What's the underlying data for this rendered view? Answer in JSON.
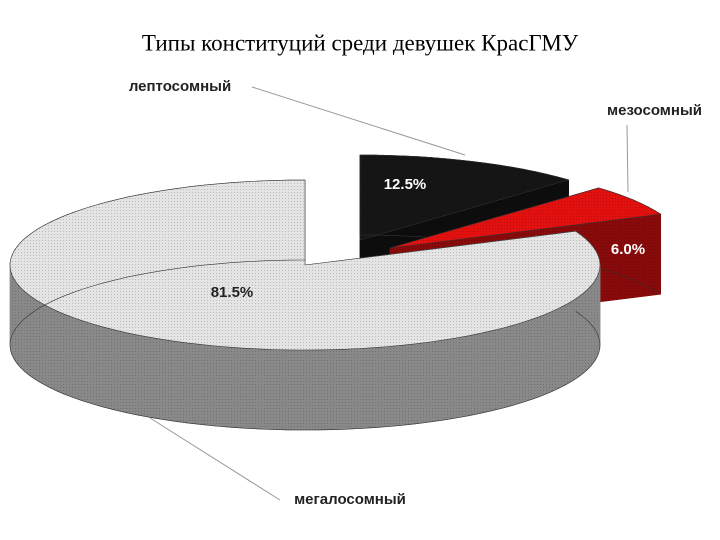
{
  "chart_data": {
    "type": "pie3d",
    "title": "Типы конституций среди девушек КрасГМУ",
    "categories": [
      "лептосомный",
      "мезосомный",
      "мегалосомный"
    ],
    "values": [
      12.5,
      6.0,
      81.5
    ],
    "value_labels": [
      "12.5%",
      "6.0%",
      "81.5%"
    ],
    "colors": [
      "#151515",
      "#e31010",
      "#e4e4e4"
    ]
  }
}
